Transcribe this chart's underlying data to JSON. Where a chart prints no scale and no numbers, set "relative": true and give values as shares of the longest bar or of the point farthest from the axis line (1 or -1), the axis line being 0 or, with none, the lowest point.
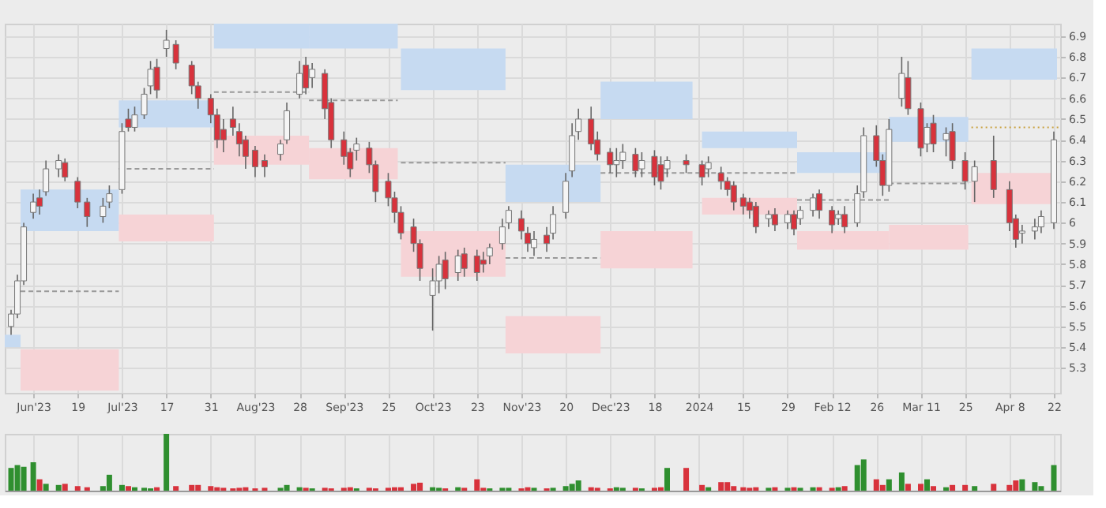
{
  "chart_data": [
    {
      "type": "candlestick",
      "x": [
        "2023-05-29",
        "2023-05-31",
        "2023-06-02",
        "2023-06-05",
        "2023-06-07",
        "2023-06-09",
        "2023-06-13",
        "2023-06-15",
        "2023-06-19",
        "2023-06-22",
        "2023-06-27",
        "2023-06-29",
        "2023-07-03",
        "2023-07-05",
        "2023-07-07",
        "2023-07-10",
        "2023-07-12",
        "2023-07-14",
        "2023-07-17",
        "2023-07-20",
        "2023-07-25",
        "2023-07-27",
        "2023-07-31",
        "2023-08-02",
        "2023-08-04",
        "2023-08-07",
        "2023-08-09",
        "2023-08-11",
        "2023-08-14",
        "2023-08-17",
        "2023-08-22",
        "2023-08-24",
        "2023-08-28",
        "2023-08-30",
        "2023-09-01",
        "2023-09-05",
        "2023-09-07",
        "2023-09-11",
        "2023-09-13",
        "2023-09-15",
        "2023-09-19",
        "2023-09-21",
        "2023-09-25",
        "2023-09-27",
        "2023-09-29",
        "2023-10-03",
        "2023-10-05",
        "2023-10-09",
        "2023-10-11",
        "2023-10-13",
        "2023-10-17",
        "2023-10-19",
        "2023-10-23",
        "2023-10-25",
        "2023-10-27",
        "2023-10-31",
        "2023-11-02",
        "2023-11-06",
        "2023-11-08",
        "2023-11-10",
        "2023-11-14",
        "2023-11-16",
        "2023-11-20",
        "2023-11-22",
        "2023-11-24",
        "2023-11-28",
        "2023-11-30",
        "2023-12-04",
        "2023-12-06",
        "2023-12-08",
        "2023-12-12",
        "2023-12-14",
        "2023-12-18",
        "2023-12-20",
        "2023-12-22",
        "2023-12-28",
        "2024-01-02",
        "2024-01-04",
        "2024-01-08",
        "2024-01-10",
        "2024-01-12",
        "2024-01-15",
        "2024-01-17",
        "2024-01-19",
        "2024-01-23",
        "2024-01-25",
        "2024-01-29",
        "2024-01-31",
        "2024-02-02",
        "2024-02-06",
        "2024-02-08",
        "2024-02-12",
        "2024-02-14",
        "2024-02-16",
        "2024-02-20",
        "2024-02-22",
        "2024-02-26",
        "2024-02-28",
        "2024-03-01",
        "2024-03-05",
        "2024-03-07",
        "2024-03-11",
        "2024-03-13",
        "2024-03-15",
        "2024-03-19",
        "2024-03-21",
        "2024-03-25",
        "2024-03-28",
        "2024-04-03",
        "2024-04-08",
        "2024-04-10",
        "2024-04-12",
        "2024-04-16",
        "2024-04-18",
        "2024-04-22"
      ],
      "ohlc": [
        [
          5.5,
          5.58,
          5.46,
          5.56
        ],
        [
          5.56,
          5.75,
          5.54,
          5.72
        ],
        [
          5.72,
          6.0,
          5.7,
          5.98
        ],
        [
          6.05,
          6.14,
          6.02,
          6.1
        ],
        [
          6.12,
          6.16,
          6.04,
          6.08
        ],
        [
          6.15,
          6.3,
          6.13,
          6.26
        ],
        [
          6.26,
          6.33,
          6.22,
          6.3
        ],
        [
          6.29,
          6.31,
          6.2,
          6.22
        ],
        [
          6.2,
          6.22,
          6.07,
          6.1
        ],
        [
          6.1,
          6.12,
          5.98,
          6.03
        ],
        [
          6.03,
          6.12,
          6.0,
          6.08
        ],
        [
          6.1,
          6.18,
          6.07,
          6.14
        ],
        [
          6.16,
          6.48,
          6.14,
          6.44
        ],
        [
          6.5,
          6.55,
          6.44,
          6.46
        ],
        [
          6.46,
          6.56,
          6.44,
          6.52
        ],
        [
          6.52,
          6.65,
          6.5,
          6.62
        ],
        [
          6.66,
          6.78,
          6.62,
          6.74
        ],
        [
          6.75,
          6.79,
          6.6,
          6.64
        ],
        [
          6.84,
          6.93,
          6.8,
          6.88
        ],
        [
          6.86,
          6.88,
          6.74,
          6.77
        ],
        [
          6.76,
          6.78,
          6.62,
          6.66
        ],
        [
          6.66,
          6.68,
          6.55,
          6.6
        ],
        [
          6.6,
          6.62,
          6.48,
          6.52
        ],
        [
          6.52,
          6.55,
          6.36,
          6.4
        ],
        [
          6.45,
          6.5,
          6.34,
          6.4
        ],
        [
          6.5,
          6.56,
          6.42,
          6.46
        ],
        [
          6.44,
          6.48,
          6.32,
          6.38
        ],
        [
          6.4,
          6.42,
          6.26,
          6.32
        ],
        [
          6.35,
          6.37,
          6.22,
          6.27
        ],
        [
          6.3,
          6.33,
          6.22,
          6.27
        ],
        [
          6.33,
          6.4,
          6.3,
          6.38
        ],
        [
          6.4,
          6.58,
          6.38,
          6.54
        ],
        [
          6.62,
          6.78,
          6.6,
          6.72
        ],
        [
          6.76,
          6.8,
          6.62,
          6.65
        ],
        [
          6.7,
          6.77,
          6.65,
          6.74
        ],
        [
          6.72,
          6.74,
          6.5,
          6.55
        ],
        [
          6.58,
          6.6,
          6.36,
          6.4
        ],
        [
          6.4,
          6.44,
          6.28,
          6.32
        ],
        [
          6.34,
          6.36,
          6.22,
          6.26
        ],
        [
          6.35,
          6.41,
          6.3,
          6.38
        ],
        [
          6.36,
          6.39,
          6.24,
          6.28
        ],
        [
          6.28,
          6.3,
          6.1,
          6.15
        ],
        [
          6.2,
          6.24,
          6.08,
          6.12
        ],
        [
          6.12,
          6.15,
          6.0,
          6.05
        ],
        [
          6.05,
          6.08,
          5.92,
          5.95
        ],
        [
          5.98,
          6.02,
          5.86,
          5.9
        ],
        [
          5.9,
          5.92,
          5.72,
          5.78
        ],
        [
          5.65,
          5.78,
          5.48,
          5.72
        ],
        [
          5.72,
          5.84,
          5.66,
          5.8
        ],
        [
          5.82,
          5.86,
          5.68,
          5.73
        ],
        [
          5.76,
          5.87,
          5.72,
          5.84
        ],
        [
          5.85,
          5.88,
          5.74,
          5.78
        ],
        [
          5.84,
          5.87,
          5.72,
          5.76
        ],
        [
          5.82,
          5.86,
          5.76,
          5.8
        ],
        [
          5.84,
          5.9,
          5.8,
          5.88
        ],
        [
          5.9,
          6.02,
          5.87,
          5.98
        ],
        [
          6.0,
          6.08,
          5.97,
          6.06
        ],
        [
          6.02,
          6.06,
          5.92,
          5.96
        ],
        [
          5.95,
          5.98,
          5.86,
          5.9
        ],
        [
          5.88,
          5.96,
          5.84,
          5.92
        ],
        [
          5.94,
          5.98,
          5.86,
          5.9
        ],
        [
          5.95,
          6.08,
          5.92,
          6.04
        ],
        [
          6.05,
          6.24,
          6.02,
          6.2
        ],
        [
          6.25,
          6.48,
          6.22,
          6.42
        ],
        [
          6.44,
          6.55,
          6.4,
          6.5
        ],
        [
          6.5,
          6.56,
          6.35,
          6.38
        ],
        [
          6.4,
          6.44,
          6.3,
          6.33
        ],
        [
          6.34,
          6.36,
          6.24,
          6.28
        ],
        [
          6.28,
          6.36,
          6.22,
          6.3
        ],
        [
          6.3,
          6.38,
          6.26,
          6.34
        ],
        [
          6.33,
          6.36,
          6.22,
          6.25
        ],
        [
          6.26,
          6.34,
          6.22,
          6.3
        ],
        [
          6.32,
          6.35,
          6.18,
          6.22
        ],
        [
          6.28,
          6.32,
          6.16,
          6.2
        ],
        [
          6.26,
          6.32,
          6.22,
          6.3
        ],
        [
          6.3,
          6.33,
          6.24,
          6.28
        ],
        [
          6.28,
          6.3,
          6.18,
          6.22
        ],
        [
          6.26,
          6.32,
          6.22,
          6.29
        ],
        [
          6.24,
          6.27,
          6.16,
          6.2
        ],
        [
          6.2,
          6.22,
          6.13,
          6.16
        ],
        [
          6.18,
          6.2,
          6.06,
          6.1
        ],
        [
          6.12,
          6.14,
          6.04,
          6.08
        ],
        [
          6.1,
          6.12,
          6.02,
          6.06
        ],
        [
          6.08,
          6.1,
          5.95,
          5.98
        ],
        [
          6.02,
          6.06,
          5.98,
          6.04
        ],
        [
          6.04,
          6.07,
          5.96,
          5.99
        ],
        [
          6.0,
          6.06,
          5.97,
          6.04
        ],
        [
          6.04,
          6.06,
          5.94,
          5.97
        ],
        [
          6.02,
          6.08,
          5.99,
          6.06
        ],
        [
          6.06,
          6.14,
          6.03,
          6.12
        ],
        [
          6.14,
          6.16,
          6.02,
          6.06
        ],
        [
          6.06,
          6.08,
          5.95,
          5.99
        ],
        [
          6.02,
          6.06,
          5.99,
          6.04
        ],
        [
          6.04,
          6.08,
          5.95,
          5.98
        ],
        [
          6.0,
          6.18,
          5.98,
          6.14
        ],
        [
          6.15,
          6.46,
          6.12,
          6.42
        ],
        [
          6.42,
          6.47,
          6.27,
          6.3
        ],
        [
          6.3,
          6.33,
          6.13,
          6.18
        ],
        [
          6.18,
          6.5,
          6.15,
          6.45
        ],
        [
          6.6,
          6.8,
          6.56,
          6.72
        ],
        [
          6.7,
          6.78,
          6.52,
          6.55
        ],
        [
          6.55,
          6.58,
          6.32,
          6.36
        ],
        [
          6.38,
          6.48,
          6.34,
          6.46
        ],
        [
          6.48,
          6.52,
          6.34,
          6.38
        ],
        [
          6.4,
          6.46,
          6.32,
          6.43
        ],
        [
          6.44,
          6.48,
          6.26,
          6.3
        ],
        [
          6.3,
          6.34,
          6.16,
          6.2
        ],
        [
          6.2,
          6.3,
          6.1,
          6.27
        ],
        [
          6.3,
          6.42,
          6.12,
          6.16
        ],
        [
          6.16,
          6.2,
          5.96,
          6.0
        ],
        [
          6.02,
          6.04,
          5.88,
          5.92
        ],
        [
          5.95,
          5.99,
          5.9,
          5.96
        ],
        [
          5.96,
          6.02,
          5.92,
          5.98
        ],
        [
          5.98,
          6.06,
          5.95,
          6.03
        ],
        [
          6.0,
          6.44,
          5.97,
          6.4
        ]
      ],
      "colors": [
        "#f5f5f5",
        "#f5f5f5",
        "#f5f5f5",
        "#f5f5f5",
        "#d8323c",
        "#f5f5f5",
        "#f5f5f5",
        "#d8323c",
        "#d8323c",
        "#d8323c",
        "#f5f5f5",
        "#f5f5f5",
        "#f5f5f5",
        "#d8323c",
        "#f5f5f5",
        "#f5f5f5",
        "#f5f5f5",
        "#d8323c",
        "#f5f5f5",
        "#d8323c",
        "#d8323c",
        "#d8323c",
        "#d8323c",
        "#d8323c",
        "#d8323c",
        "#d8323c",
        "#d8323c",
        "#d8323c",
        "#d8323c",
        "#d8323c",
        "#f5f5f5",
        "#f5f5f5",
        "#f5f5f5",
        "#d8323c",
        "#f5f5f5",
        "#d8323c",
        "#d8323c",
        "#d8323c",
        "#d8323c",
        "#f5f5f5",
        "#d8323c",
        "#d8323c",
        "#d8323c",
        "#d8323c",
        "#d8323c",
        "#d8323c",
        "#d8323c",
        "#f5f5f5",
        "#f5f5f5",
        "#d8323c",
        "#f5f5f5",
        "#d8323c",
        "#d8323c",
        "#d8323c",
        "#f5f5f5",
        "#f5f5f5",
        "#f5f5f5",
        "#d8323c",
        "#d8323c",
        "#f5f5f5",
        "#d8323c",
        "#f5f5f5",
        "#f5f5f5",
        "#f5f5f5",
        "#f5f5f5",
        "#d8323c",
        "#d8323c",
        "#d8323c",
        "#f5f5f5",
        "#f5f5f5",
        "#d8323c",
        "#f5f5f5",
        "#d8323c",
        "#d8323c",
        "#f5f5f5",
        "#d8323c",
        "#d8323c",
        "#f5f5f5",
        "#d8323c",
        "#d8323c",
        "#d8323c",
        "#d8323c",
        "#d8323c",
        "#d8323c",
        "#f5f5f5",
        "#d8323c",
        "#f5f5f5",
        "#d8323c",
        "#f5f5f5",
        "#f5f5f5",
        "#d8323c",
        "#d8323c",
        "#f5f5f5",
        "#d8323c",
        "#f5f5f5",
        "#f5f5f5",
        "#d8323c",
        "#d8323c",
        "#f5f5f5",
        "#f5f5f5",
        "#d8323c",
        "#d8323c",
        "#f5f5f5",
        "#d8323c",
        "#f5f5f5",
        "#d8323c",
        "#d8323c",
        "#f5f5f5",
        "#d8323c",
        "#d8323c",
        "#d8323c",
        "#f5f5f5",
        "#f5f5f5",
        "#f5f5f5",
        "#f5f5f5"
      ],
      "xlim": [
        "2023-05-27",
        "2024-04-24"
      ],
      "xticks": [
        {
          "value": "2023-06-05",
          "label": "Jun'23"
        },
        {
          "value": "2023-06-19",
          "label": "19"
        },
        {
          "value": "2023-07-03",
          "label": "Jul'23"
        },
        {
          "value": "2023-07-17",
          "label": "17"
        },
        {
          "value": "2023-07-31",
          "label": "31"
        },
        {
          "value": "2023-08-14",
          "label": "Aug'23"
        },
        {
          "value": "2023-08-28",
          "label": "28"
        },
        {
          "value": "2023-09-11",
          "label": "Sep'23"
        },
        {
          "value": "2023-09-25",
          "label": "25"
        },
        {
          "value": "2023-10-09",
          "label": "Oct'23"
        },
        {
          "value": "2023-10-23",
          "label": "23"
        },
        {
          "value": "2023-11-06",
          "label": "Nov'23"
        },
        {
          "value": "2023-11-20",
          "label": "20"
        },
        {
          "value": "2023-12-04",
          "label": "Dec'23"
        },
        {
          "value": "2023-12-18",
          "label": "18"
        },
        {
          "value": "2024-01-01",
          "label": "2024"
        },
        {
          "value": "2024-01-15",
          "label": "15"
        },
        {
          "value": "2024-01-29",
          "label": "29"
        },
        {
          "value": "2024-02-12",
          "label": "Feb 12"
        },
        {
          "value": "2024-02-26",
          "label": "26"
        },
        {
          "value": "2024-03-11",
          "label": "Mar 11"
        },
        {
          "value": "2024-03-25",
          "label": "25"
        },
        {
          "value": "2024-04-08",
          "label": "Apr 8"
        },
        {
          "value": "2024-04-22",
          "label": "22"
        }
      ],
      "ylim": [
        5.18,
        6.96
      ],
      "yticks": [
        5.3,
        5.4,
        5.5,
        5.6,
        5.7,
        5.8,
        5.9,
        6,
        6.1,
        6.2,
        6.3,
        6.4,
        6.5,
        6.6,
        6.7,
        6.8,
        6.9
      ],
      "grid": true,
      "series": [
        {
          "type": "line",
          "x": [
            "2023-05-27",
            "2023-06-01"
          ],
          "values": [
            null,
            null
          ],
          "upper": [
            5.46,
            5.46
          ],
          "lower": [
            5.4,
            5.4
          ],
          "color": "#c6daf1"
        },
        {
          "type": "line",
          "x": [
            "2023-06-01",
            "2023-07-02"
          ],
          "values": [
            null,
            null
          ],
          "upper": [
            6.16,
            6.16
          ],
          "lower": [
            5.96,
            5.96
          ],
          "color": "#c6daf1"
        },
        {
          "type": "line",
          "x": [
            "2023-06-01",
            "2023-07-02"
          ],
          "values": [
            null,
            null
          ],
          "upper": [
            5.39,
            5.39
          ],
          "lower": [
            5.19,
            5.19
          ],
          "color": "#f6d3d6"
        },
        {
          "type": "line",
          "x": [
            "2023-07-02",
            "2023-08-01"
          ],
          "values": [
            null,
            null
          ],
          "upper": [
            6.59,
            6.59
          ],
          "lower": [
            6.46,
            6.46
          ],
          "color": "#c6daf1"
        },
        {
          "type": "line",
          "x": [
            "2023-07-02",
            "2023-08-01"
          ],
          "values": [
            null,
            null
          ],
          "upper": [
            6.04,
            6.04
          ],
          "lower": [
            5.91,
            5.91
          ],
          "color": "#f6d3d6"
        },
        {
          "type": "line",
          "x": [
            "2023-08-01",
            "2023-08-31"
          ],
          "values": [
            null,
            null
          ],
          "upper": [
            6.96,
            6.96
          ],
          "lower": [
            6.84,
            6.84
          ],
          "color": "#c6daf1"
        },
        {
          "type": "line",
          "x": [
            "2023-08-01",
            "2023-08-31"
          ],
          "values": [
            null,
            null
          ],
          "upper": [
            6.42,
            6.42
          ],
          "lower": [
            6.28,
            6.28
          ],
          "color": "#f6d3d6"
        },
        {
          "type": "line",
          "x": [
            "2023-08-31",
            "2023-09-28"
          ],
          "values": [
            null,
            null
          ],
          "upper": [
            6.96,
            6.96
          ],
          "lower": [
            6.84,
            6.84
          ],
          "color": "#c6daf1"
        },
        {
          "type": "line",
          "x": [
            "2023-08-31",
            "2023-09-28"
          ],
          "values": [
            null,
            null
          ],
          "upper": [
            6.36,
            6.36
          ],
          "lower": [
            6.21,
            6.21
          ],
          "color": "#f6d3d6"
        },
        {
          "type": "line",
          "x": [
            "2023-09-29",
            "2023-11-01"
          ],
          "values": [
            null,
            null
          ],
          "upper": [
            6.84,
            6.84
          ],
          "lower": [
            6.64,
            6.64
          ],
          "color": "#c6daf1"
        },
        {
          "type": "line",
          "x": [
            "2023-09-29",
            "2023-11-01"
          ],
          "values": [
            null,
            null
          ],
          "upper": [
            5.96,
            5.96
          ],
          "lower": [
            5.74,
            5.74
          ],
          "color": "#f6d3d6"
        },
        {
          "type": "line",
          "x": [
            "2023-11-01",
            "2023-12-01"
          ],
          "values": [
            null,
            null
          ],
          "upper": [
            6.28,
            6.28
          ],
          "lower": [
            6.1,
            6.1
          ],
          "color": "#c6daf1"
        },
        {
          "type": "line",
          "x": [
            "2023-11-01",
            "2023-12-01"
          ],
          "values": [
            null,
            null
          ],
          "upper": [
            5.55,
            5.55
          ],
          "lower": [
            5.37,
            5.37
          ],
          "color": "#f6d3d6"
        },
        {
          "type": "line",
          "x": [
            "2023-12-01",
            "2023-12-30"
          ],
          "values": [
            null,
            null
          ],
          "upper": [
            6.68,
            6.68
          ],
          "lower": [
            6.5,
            6.5
          ],
          "color": "#c6daf1"
        },
        {
          "type": "line",
          "x": [
            "2023-12-01",
            "2023-12-30"
          ],
          "values": [
            null,
            null
          ],
          "upper": [
            5.96,
            5.96
          ],
          "lower": [
            5.78,
            5.78
          ],
          "color": "#f6d3d6"
        },
        {
          "type": "line",
          "x": [
            "2024-01-02",
            "2024-02-01"
          ],
          "values": [
            null,
            null
          ],
          "upper": [
            6.44,
            6.44
          ],
          "lower": [
            6.36,
            6.36
          ],
          "color": "#c6daf1"
        },
        {
          "type": "line",
          "x": [
            "2024-01-02",
            "2024-02-01"
          ],
          "values": [
            null,
            null
          ],
          "upper": [
            6.12,
            6.12
          ],
          "lower": [
            6.04,
            6.04
          ],
          "color": "#f6d3d6"
        },
        {
          "type": "line",
          "x": [
            "2024-02-01",
            "2024-03-01"
          ],
          "values": [
            null,
            null
          ],
          "upper": [
            6.34,
            6.34
          ],
          "lower": [
            6.24,
            6.24
          ],
          "color": "#c6daf1"
        },
        {
          "type": "line",
          "x": [
            "2024-02-01",
            "2024-03-01"
          ],
          "values": [
            null,
            null
          ],
          "upper": [
            5.96,
            5.96
          ],
          "lower": [
            5.87,
            5.87
          ],
          "color": "#f6d3d6"
        },
        {
          "type": "line",
          "x": [
            "2024-03-01",
            "2024-03-26"
          ],
          "values": [
            null,
            null
          ],
          "upper": [
            6.51,
            6.51
          ],
          "lower": [
            6.39,
            6.39
          ],
          "color": "#c6daf1"
        },
        {
          "type": "line",
          "x": [
            "2024-03-01",
            "2024-03-26"
          ],
          "values": [
            null,
            null
          ],
          "upper": [
            5.99,
            5.99
          ],
          "lower": [
            5.87,
            5.87
          ],
          "color": "#f6d3d6"
        },
        {
          "type": "line",
          "x": [
            "2024-03-27",
            "2024-04-23"
          ],
          "values": [
            null,
            null
          ],
          "upper": [
            6.84,
            6.84
          ],
          "lower": [
            6.69,
            6.69
          ],
          "color": "#c6daf1"
        },
        {
          "type": "line",
          "x": [
            "2024-03-27",
            "2024-04-23"
          ],
          "values": [
            null,
            null
          ],
          "upper": [
            6.24,
            6.24
          ],
          "lower": [
            6.09,
            6.09
          ],
          "color": "#f6d3d6"
        },
        {
          "type": "line",
          "x": [
            "2023-06-01",
            "2023-07-02"
          ],
          "values": [
            5.67,
            5.67
          ],
          "color": "#999999",
          "line_style": "dashed"
        },
        {
          "type": "line",
          "x": [
            "2023-07-02",
            "2023-08-01"
          ],
          "values": [
            6.26,
            6.26
          ],
          "color": "#999999",
          "line_style": "dashed"
        },
        {
          "type": "line",
          "x": [
            "2023-08-01",
            "2023-08-31"
          ],
          "values": [
            6.63,
            6.63
          ],
          "color": "#999999",
          "line_style": "dashed"
        },
        {
          "type": "line",
          "x": [
            "2023-08-31",
            "2023-09-28"
          ],
          "values": [
            6.59,
            6.59
          ],
          "color": "#999999",
          "line_style": "dashed"
        },
        {
          "type": "line",
          "x": [
            "2023-09-29",
            "2023-11-01"
          ],
          "values": [
            6.29,
            6.29
          ],
          "color": "#999999",
          "line_style": "dashed"
        },
        {
          "type": "line",
          "x": [
            "2023-11-01",
            "2023-12-01"
          ],
          "values": [
            5.83,
            5.83
          ],
          "color": "#999999",
          "line_style": "dashed"
        },
        {
          "type": "line",
          "x": [
            "2023-12-01",
            "2024-02-01"
          ],
          "values": [
            6.24,
            6.24
          ],
          "color": "#999999",
          "line_style": "dashed"
        },
        {
          "type": "line",
          "x": [
            "2024-02-01",
            "2024-03-01"
          ],
          "values": [
            6.11,
            6.11
          ],
          "color": "#999999",
          "line_style": "dashed"
        },
        {
          "type": "line",
          "x": [
            "2024-03-01",
            "2024-03-26"
          ],
          "values": [
            6.19,
            6.19
          ],
          "color": "#999999",
          "line_style": "dashed"
        },
        {
          "type": "line",
          "x": [
            "2024-03-27",
            "2024-04-24"
          ],
          "values": [
            6.46,
            6.46
          ],
          "color": "#c9a13f",
          "line_style": "dotted"
        }
      ]
    },
    {
      "type": "bar",
      "relative": true,
      "tick_labels": false,
      "grid": "x",
      "x": [
        "2023-05-29",
        "2023-05-31",
        "2023-06-02",
        "2023-06-05",
        "2023-06-07",
        "2023-06-09",
        "2023-06-13",
        "2023-06-15",
        "2023-06-19",
        "2023-06-22",
        "2023-06-27",
        "2023-06-29",
        "2023-07-03",
        "2023-07-05",
        "2023-07-07",
        "2023-07-10",
        "2023-07-12",
        "2023-07-14",
        "2023-07-17",
        "2023-07-20",
        "2023-07-25",
        "2023-07-27",
        "2023-07-31",
        "2023-08-02",
        "2023-08-04",
        "2023-08-07",
        "2023-08-09",
        "2023-08-11",
        "2023-08-14",
        "2023-08-17",
        "2023-08-22",
        "2023-08-24",
        "2023-08-28",
        "2023-08-30",
        "2023-09-01",
        "2023-09-05",
        "2023-09-07",
        "2023-09-11",
        "2023-09-13",
        "2023-09-15",
        "2023-09-19",
        "2023-09-21",
        "2023-09-25",
        "2023-09-27",
        "2023-09-29",
        "2023-10-03",
        "2023-10-05",
        "2023-10-09",
        "2023-10-11",
        "2023-10-13",
        "2023-10-17",
        "2023-10-19",
        "2023-10-23",
        "2023-10-25",
        "2023-10-27",
        "2023-10-31",
        "2023-11-02",
        "2023-11-06",
        "2023-11-08",
        "2023-11-10",
        "2023-11-14",
        "2023-11-16",
        "2023-11-20",
        "2023-11-22",
        "2023-11-24",
        "2023-11-28",
        "2023-11-30",
        "2023-12-04",
        "2023-12-06",
        "2023-12-08",
        "2023-12-12",
        "2023-12-14",
        "2023-12-18",
        "2023-12-20",
        "2023-12-22",
        "2023-12-28",
        "2024-01-02",
        "2024-01-04",
        "2024-01-08",
        "2024-01-10",
        "2024-01-12",
        "2024-01-15",
        "2024-01-17",
        "2024-01-19",
        "2024-01-23",
        "2024-01-25",
        "2024-01-29",
        "2024-01-31",
        "2024-02-02",
        "2024-02-06",
        "2024-02-08",
        "2024-02-12",
        "2024-02-14",
        "2024-02-16",
        "2024-02-20",
        "2024-02-22",
        "2024-02-26",
        "2024-02-28",
        "2024-03-01",
        "2024-03-05",
        "2024-03-07",
        "2024-03-11",
        "2024-03-13",
        "2024-03-15",
        "2024-03-19",
        "2024-03-21",
        "2024-03-25",
        "2024-03-28",
        "2024-04-03",
        "2024-04-08",
        "2024-04-10",
        "2024-04-12",
        "2024-04-16",
        "2024-04-18",
        "2024-04-22"
      ],
      "xlim": [
        "2023-05-27",
        "2024-04-24"
      ],
      "xticks": [
        {
          "value": "2023-06-05",
          "label": null
        },
        {
          "value": "2023-06-19",
          "label": null
        },
        {
          "value": "2023-07-03",
          "label": null
        },
        {
          "value": "2023-07-17",
          "label": null
        },
        {
          "value": "2023-07-31",
          "label": null
        },
        {
          "value": "2023-08-14",
          "label": null
        },
        {
          "value": "2023-08-28",
          "label": null
        },
        {
          "value": "2023-09-11",
          "label": null
        },
        {
          "value": "2023-09-25",
          "label": null
        },
        {
          "value": "2023-10-09",
          "label": null
        },
        {
          "value": "2023-10-23",
          "label": null
        },
        {
          "value": "2023-11-06",
          "label": null
        },
        {
          "value": "2023-11-20",
          "label": null
        },
        {
          "value": "2023-12-04",
          "label": null
        },
        {
          "value": "2023-12-18",
          "label": null
        },
        {
          "value": "2024-01-01",
          "label": null
        },
        {
          "value": "2024-01-15",
          "label": null
        },
        {
          "value": "2024-01-29",
          "label": null
        },
        {
          "value": "2024-02-12",
          "label": null
        },
        {
          "value": "2024-02-26",
          "label": null
        },
        {
          "value": "2024-03-11",
          "label": null
        },
        {
          "value": "2024-03-25",
          "label": null
        },
        {
          "value": "2024-04-08",
          "label": null
        },
        {
          "value": "2024-04-22",
          "label": null
        }
      ],
      "values": [
        0.4,
        0.45,
        0.42,
        0.5,
        0.2,
        0.12,
        0.1,
        0.12,
        0.08,
        0.06,
        0.08,
        0.28,
        0.1,
        0.08,
        0.06,
        0.05,
        0.04,
        0.06,
        1.0,
        0.08,
        0.1,
        0.1,
        0.08,
        0.06,
        0.05,
        0.04,
        0.05,
        0.06,
        0.04,
        0.05,
        0.05,
        0.1,
        0.06,
        0.05,
        0.04,
        0.05,
        0.04,
        0.05,
        0.06,
        0.04,
        0.05,
        0.04,
        0.05,
        0.06,
        0.06,
        0.12,
        0.14,
        0.06,
        0.05,
        0.04,
        0.06,
        0.05,
        0.2,
        0.05,
        0.04,
        0.05,
        0.05,
        0.04,
        0.06,
        0.05,
        0.04,
        0.05,
        0.08,
        0.12,
        0.18,
        0.06,
        0.05,
        0.04,
        0.06,
        0.05,
        0.05,
        0.04,
        0.05,
        0.06,
        0.4,
        0.4,
        0.1,
        0.06,
        0.15,
        0.15,
        0.08,
        0.06,
        0.05,
        0.06,
        0.05,
        0.06,
        0.05,
        0.06,
        0.05,
        0.06,
        0.06,
        0.05,
        0.06,
        0.08,
        0.45,
        0.55,
        0.2,
        0.1,
        0.2,
        0.32,
        0.12,
        0.12,
        0.2,
        0.08,
        0.06,
        0.1,
        0.1,
        0.08,
        0.12,
        0.1,
        0.18,
        0.2,
        0.15,
        0.08,
        0.45
      ],
      "colors": [
        "#2f8f2f",
        "#2f8f2f",
        "#2f8f2f",
        "#2f8f2f",
        "#d8323c",
        "#2f8f2f",
        "#2f8f2f",
        "#d8323c",
        "#d8323c",
        "#d8323c",
        "#2f8f2f",
        "#2f8f2f",
        "#2f8f2f",
        "#d8323c",
        "#2f8f2f",
        "#2f8f2f",
        "#2f8f2f",
        "#d8323c",
        "#2f8f2f",
        "#d8323c",
        "#d8323c",
        "#d8323c",
        "#d8323c",
        "#d8323c",
        "#d8323c",
        "#d8323c",
        "#d8323c",
        "#d8323c",
        "#d8323c",
        "#d8323c",
        "#2f8f2f",
        "#2f8f2f",
        "#2f8f2f",
        "#d8323c",
        "#2f8f2f",
        "#d8323c",
        "#d8323c",
        "#d8323c",
        "#d8323c",
        "#2f8f2f",
        "#d8323c",
        "#d8323c",
        "#d8323c",
        "#d8323c",
        "#d8323c",
        "#d8323c",
        "#d8323c",
        "#2f8f2f",
        "#2f8f2f",
        "#d8323c",
        "#2f8f2f",
        "#d8323c",
        "#d8323c",
        "#d8323c",
        "#2f8f2f",
        "#2f8f2f",
        "#2f8f2f",
        "#d8323c",
        "#d8323c",
        "#2f8f2f",
        "#d8323c",
        "#2f8f2f",
        "#2f8f2f",
        "#2f8f2f",
        "#2f8f2f",
        "#d8323c",
        "#d8323c",
        "#d8323c",
        "#2f8f2f",
        "#2f8f2f",
        "#d8323c",
        "#2f8f2f",
        "#d8323c",
        "#d8323c",
        "#2f8f2f",
        "#d8323c",
        "#d8323c",
        "#2f8f2f",
        "#d8323c",
        "#d8323c",
        "#d8323c",
        "#d8323c",
        "#d8323c",
        "#d8323c",
        "#2f8f2f",
        "#d8323c",
        "#2f8f2f",
        "#d8323c",
        "#2f8f2f",
        "#2f8f2f",
        "#d8323c",
        "#d8323c",
        "#2f8f2f",
        "#d8323c",
        "#2f8f2f",
        "#2f8f2f",
        "#d8323c",
        "#d8323c",
        "#2f8f2f",
        "#2f8f2f",
        "#d8323c",
        "#d8323c",
        "#2f8f2f",
        "#d8323c",
        "#2f8f2f",
        "#d8323c",
        "#d8323c",
        "#2f8f2f",
        "#d8323c",
        "#d8323c",
        "#d8323c",
        "#2f8f2f",
        "#2f8f2f",
        "#2f8f2f",
        "#2f8f2f"
      ]
    }
  ]
}
